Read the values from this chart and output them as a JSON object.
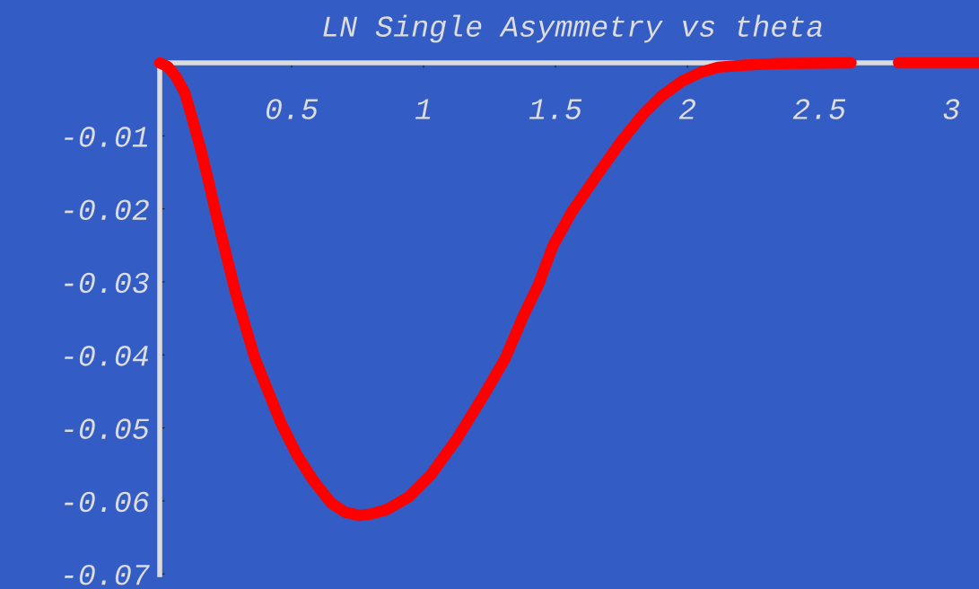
{
  "chart_data": {
    "type": "line",
    "title": "LN Single Asymmetry vs theta",
    "x": [
      0,
      0.03,
      0.06,
      0.095,
      0.12,
      0.156,
      0.185,
      0.214,
      0.25,
      0.289,
      0.32,
      0.361,
      0.41,
      0.459,
      0.52,
      0.582,
      0.65,
      0.7,
      0.755,
      0.8,
      0.86,
      0.946,
      1.03,
      1.126,
      1.22,
      1.309,
      1.38,
      1.435,
      1.49,
      1.56,
      1.663,
      1.75,
      1.833,
      1.9,
      1.98,
      2.05,
      2.116,
      2.22,
      2.34,
      2.62,
      2.7,
      2.8,
      3.105
    ],
    "series": [
      {
        "color": "#ff0000",
        "values": [
          0,
          -0.0005,
          -0.0018,
          -0.0041,
          -0.0072,
          -0.0119,
          -0.0162,
          -0.0208,
          -0.026,
          -0.0317,
          -0.0355,
          -0.0405,
          -0.0449,
          -0.0493,
          -0.0537,
          -0.0572,
          -0.0603,
          -0.0615,
          -0.062,
          -0.0618,
          -0.0612,
          -0.0594,
          -0.0563,
          -0.0515,
          -0.046,
          -0.0405,
          -0.0345,
          -0.0304,
          -0.0251,
          -0.0205,
          -0.0151,
          -0.0107,
          -0.007,
          -0.0046,
          -0.0025,
          -0.0013,
          -0.0006,
          -0.0003,
          -0.0001,
          0,
          null,
          0,
          0
        ]
      }
    ],
    "xlim": [
      0,
      3.105
    ],
    "ylim": [
      -0.0701,
      0
    ],
    "xticks": [
      0.5,
      1,
      1.5,
      2,
      2.5,
      3
    ],
    "yticks": [
      -0.01,
      -0.02,
      -0.03,
      -0.04,
      -0.05,
      -0.06,
      -0.07
    ],
    "grid": false,
    "line_style": "solid"
  }
}
